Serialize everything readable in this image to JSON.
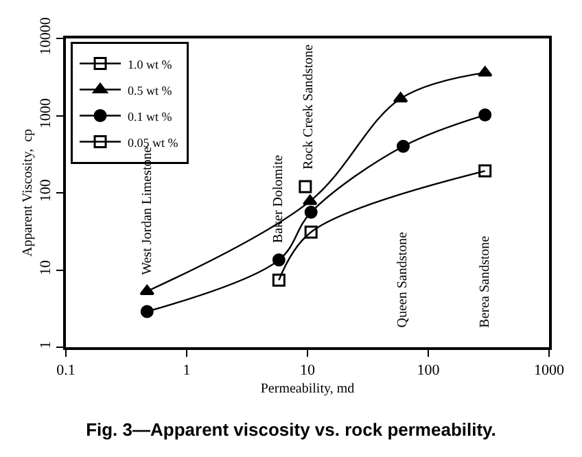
{
  "chart_data": {
    "type": "line",
    "title": "Fig. 3—Apparent viscosity vs. rock permeability.",
    "xlabel": "Permeability, md",
    "ylabel": "Apparent Viscosity,  cp",
    "log": "xy",
    "xlim": [
      0.1,
      1000
    ],
    "ylim": [
      1,
      10000
    ],
    "xticks": [
      0.1,
      1,
      10,
      100,
      1000
    ],
    "yticks": [
      1,
      10,
      100,
      1000,
      10000
    ],
    "legend": "top left",
    "line_style": "solid",
    "series": [
      {
        "name": "1.0 wt %",
        "color": "#000000",
        "marker": "square",
        "x": [
          9.6
        ],
        "values": [
          120
        ]
      },
      {
        "name": "0.5 wt %",
        "color": "#000000",
        "marker": "triangle",
        "x": [
          0.47,
          10.5,
          59,
          295
        ],
        "values": [
          5.3,
          78,
          1660,
          3600
        ]
      },
      {
        "name": "0.1 wt %",
        "color": "#000000",
        "marker": "circle",
        "x": [
          0.47,
          5.8,
          10.7,
          62,
          295
        ],
        "values": [
          2.9,
          13.5,
          56,
          400,
          1020
        ]
      },
      {
        "name": "0.05 wt %",
        "color": "#000000",
        "marker": "square",
        "x": [
          5.8,
          10.7,
          295
        ],
        "values": [
          7.4,
          31,
          192
        ]
      }
    ],
    "annotations": [
      "West Jordan Limestone",
      "Baker Dolomite",
      "Rock Creek Sandstone",
      "Queen Sandstone",
      "Berea Sandstone"
    ]
  }
}
